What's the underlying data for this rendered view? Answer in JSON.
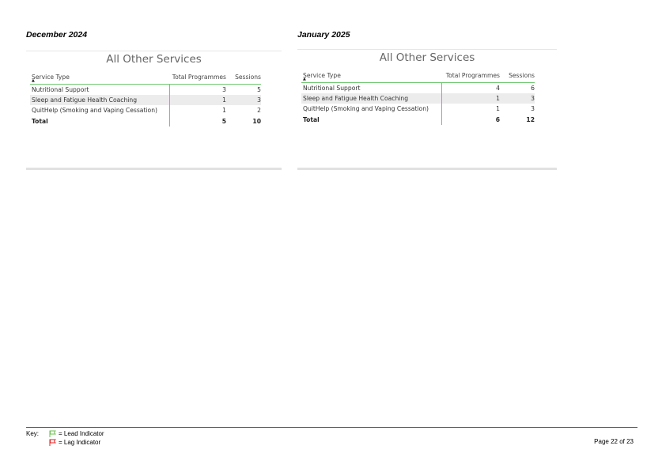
{
  "sections": [
    {
      "month": "December 2024",
      "title": "All Other Services",
      "headers": {
        "service_type": "Service Type",
        "total_programmes": "Total Programmes",
        "sessions": "Sessions"
      },
      "rows": [
        {
          "service_type": "Nutritional Support",
          "total_programmes": "3",
          "sessions": "5"
        },
        {
          "service_type": "Sleep and Fatigue Health Coaching",
          "total_programmes": "1",
          "sessions": "3"
        },
        {
          "service_type": "QuitHelp (Smoking and Vaping Cessation)",
          "total_programmes": "1",
          "sessions": "2"
        }
      ],
      "total": {
        "label": "Total",
        "total_programmes": "5",
        "sessions": "10"
      }
    },
    {
      "month": "January 2025",
      "title": "All Other Services",
      "headers": {
        "service_type": "Service Type",
        "total_programmes": "Total Programmes",
        "sessions": "Sessions"
      },
      "rows": [
        {
          "service_type": "Nutritional Support",
          "total_programmes": "4",
          "sessions": "6"
        },
        {
          "service_type": "Sleep and Fatigue Health Coaching",
          "total_programmes": "1",
          "sessions": "3"
        },
        {
          "service_type": "QuitHelp (Smoking and Vaping Cessation)",
          "total_programmes": "1",
          "sessions": "3"
        }
      ],
      "total": {
        "label": "Total",
        "total_programmes": "6",
        "sessions": "12"
      }
    }
  ],
  "footer": {
    "key_label": "Key:",
    "lead_text": "= Lead Indicator",
    "lag_text": "= Lag Indicator",
    "lead_icon": "green-flag-icon",
    "lag_icon": "red-flag-icon",
    "lead_color": "#6abf4b",
    "lag_color": "#e02020",
    "page_number": "Page 22 of 23"
  }
}
